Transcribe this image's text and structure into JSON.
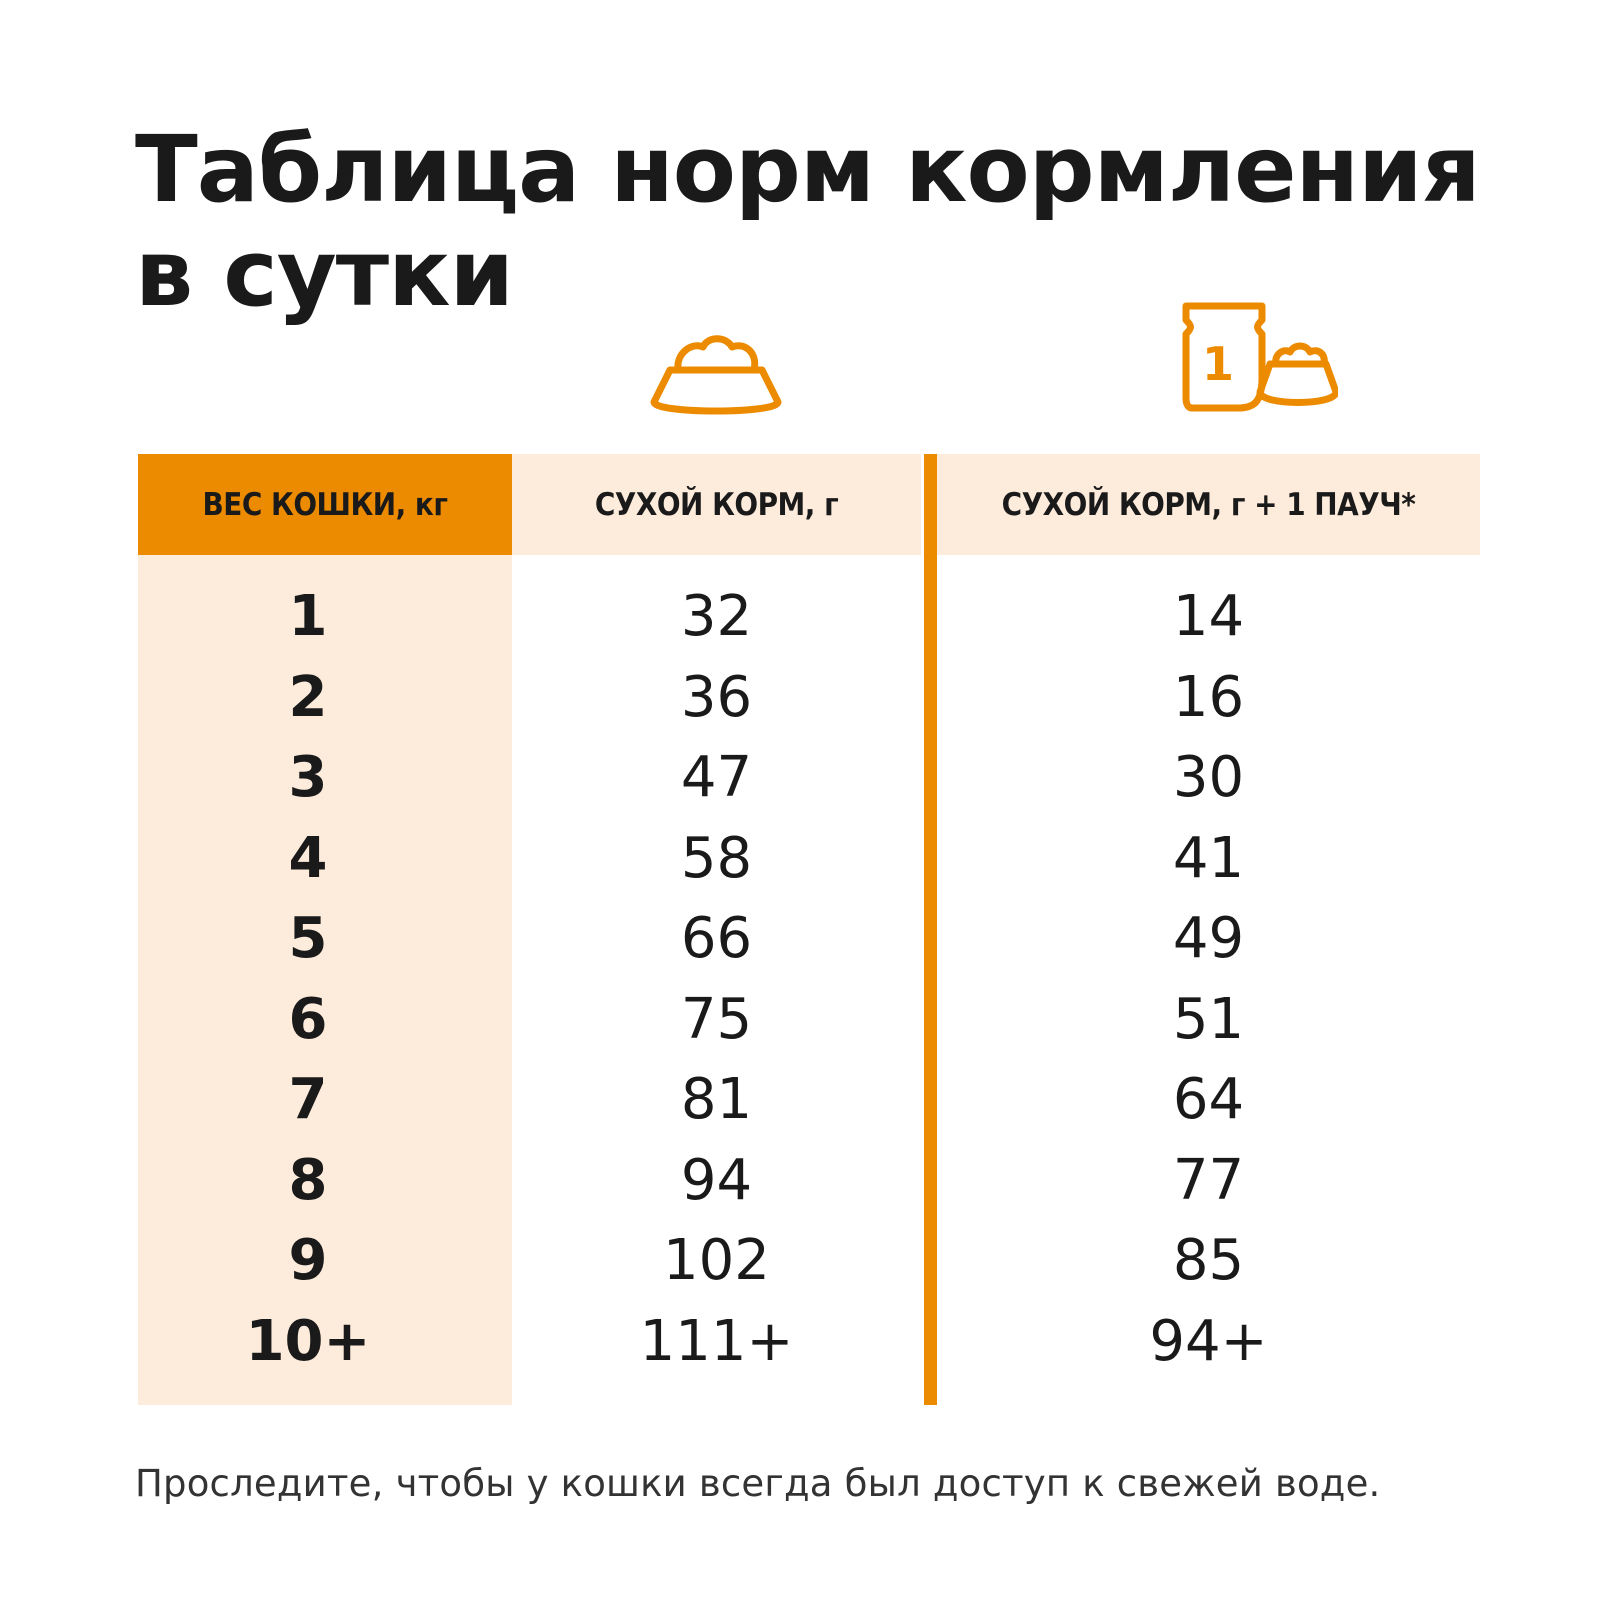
{
  "title": "Таблица норм кормления в сутки",
  "colors": {
    "accent": "#ed8b00",
    "light": "#fdecdc",
    "text": "#1a1a1a"
  },
  "icons": {
    "dry": "food-bowl-icon",
    "mix": "pouch-and-bowl-icon",
    "pouch_number": "1"
  },
  "table": {
    "headers": {
      "weight": "ВЕС КОШКИ, кг",
      "dry": "СУХОЙ КОРМ, г",
      "mix": "СУХОЙ КОРМ, г  + 1 ПАУЧ*"
    },
    "rows": [
      {
        "weight": "1",
        "dry": "32",
        "mix": "14"
      },
      {
        "weight": "2",
        "dry": "36",
        "mix": "16"
      },
      {
        "weight": "3",
        "dry": "47",
        "mix": "30"
      },
      {
        "weight": "4",
        "dry": "58",
        "mix": "41"
      },
      {
        "weight": "5",
        "dry": "66",
        "mix": "49"
      },
      {
        "weight": "6",
        "dry": "75",
        "mix": "51"
      },
      {
        "weight": "7",
        "dry": "81",
        "mix": "64"
      },
      {
        "weight": "8",
        "dry": "94",
        "mix": "77"
      },
      {
        "weight": "9",
        "dry": "102",
        "mix": "85"
      },
      {
        "weight": "10+",
        "dry": "111+",
        "mix": "94+"
      }
    ]
  },
  "note": "Проследите, чтобы у кошки всегда был доступ к свежей воде."
}
